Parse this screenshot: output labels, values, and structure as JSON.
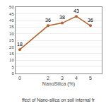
{
  "chart_data": {
    "type": "line",
    "x": [
      0,
      2,
      3,
      4,
      5
    ],
    "values": [
      18,
      36,
      38,
      43,
      36
    ],
    "data_labels": true,
    "xlabel": "NanoSilica (%)",
    "annotations": [
      "ffect of Nano-silica on soil internal fr"
    ],
    "xlim": [
      -0.3,
      5.8
    ],
    "xticks": [
      0,
      2,
      3,
      4,
      5
    ],
    "ylim": [
      0,
      50
    ],
    "yticks": [
      0,
      5,
      10,
      15,
      20,
      25,
      30,
      35,
      40,
      45,
      50
    ],
    "color": "#b8622b",
    "marker": "circle",
    "grid": true
  }
}
